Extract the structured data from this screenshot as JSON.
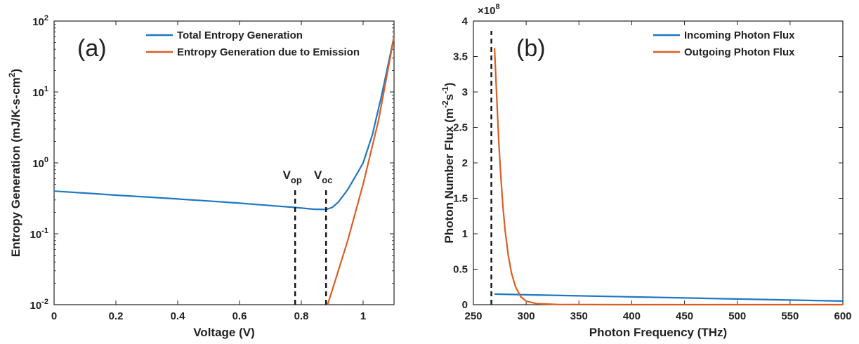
{
  "chart_data": [
    {
      "panel": "(a)",
      "type": "line",
      "xlabel": "Voltage (V)",
      "ylabel": "Entropy Generation (mJ/K-s-cm²)",
      "xlim": [
        0,
        1.1
      ],
      "ylim": [
        0.01,
        100
      ],
      "yscale": "log",
      "xticks": [
        "0",
        "0.2",
        "0.4",
        "0.6",
        "0.8",
        "1"
      ],
      "xtick_values": [
        0,
        0.2,
        0.4,
        0.6,
        0.8,
        1.0
      ],
      "yticks": [
        "10-2",
        "10-1",
        "100",
        "101",
        "102"
      ],
      "ytick_values": [
        0.01,
        0.1,
        1,
        10,
        100
      ],
      "grid": false,
      "legend": "top-right",
      "series": [
        {
          "name": "Total Entropy Generation",
          "color": "#1f77c4",
          "x": [
            0.0,
            0.1,
            0.2,
            0.3,
            0.4,
            0.5,
            0.6,
            0.7,
            0.78,
            0.84,
            0.88,
            0.9,
            0.92,
            0.95,
            0.98,
            1.0,
            1.03,
            1.06,
            1.1
          ],
          "y": [
            0.4,
            0.375,
            0.35,
            0.33,
            0.31,
            0.29,
            0.27,
            0.25,
            0.235,
            0.222,
            0.22,
            0.235,
            0.28,
            0.42,
            0.7,
            1.0,
            2.5,
            9.0,
            60
          ]
        },
        {
          "name": "Entropy Generation due to Emission",
          "color": "#d95f24",
          "x": [
            0.885,
            0.9,
            0.95,
            1.0,
            1.05,
            1.1
          ],
          "y": [
            0.01,
            0.016,
            0.08,
            0.5,
            4.0,
            60
          ]
        }
      ],
      "annotations": [
        {
          "base": "V",
          "sub": "op",
          "x": 0.78
        },
        {
          "base": "V",
          "sub": "oc",
          "x": 0.88
        }
      ]
    },
    {
      "panel": "(b)",
      "type": "line",
      "xlabel": "Photon Frequency (THz)",
      "ylabel": "Photon Number Flux (m-2s-1)",
      "ylabel_parts": {
        "main": "Photon Number Flux (m",
        "sup1": "-2",
        "mid": "s",
        "sup2": "-1",
        "end": ")"
      },
      "multiplier": "×10",
      "multiplier_exp": "8",
      "xlim": [
        250,
        600
      ],
      "ylim": [
        0,
        4
      ],
      "xticks": [
        "250",
        "300",
        "350",
        "400",
        "450",
        "500",
        "550",
        "600"
      ],
      "xtick_values": [
        250,
        300,
        350,
        400,
        450,
        500,
        550,
        600
      ],
      "yticks": [
        "0",
        "0.5",
        "1",
        "1.5",
        "2",
        "2.5",
        "3",
        "3.5",
        "4"
      ],
      "ytick_values": [
        0,
        0.5,
        1,
        1.5,
        2,
        2.5,
        3,
        3.5,
        4
      ],
      "grid": false,
      "legend": "top-right",
      "cutoff_x": 267,
      "series": [
        {
          "name": "Incoming Photon Flux",
          "color": "#1f77c4",
          "x": [
            270,
            300,
            350,
            400,
            450,
            500,
            550,
            600
          ],
          "y": [
            0.15,
            0.14,
            0.125,
            0.11,
            0.095,
            0.08,
            0.065,
            0.05
          ]
        },
        {
          "name": "Outgoing Photon Flux",
          "color": "#d95f24",
          "x": [
            270,
            272,
            274,
            276,
            278,
            280,
            283,
            286,
            290,
            295,
            300,
            310,
            330,
            400,
            500,
            600
          ],
          "y": [
            3.62,
            2.95,
            2.3,
            1.8,
            1.38,
            1.05,
            0.7,
            0.45,
            0.25,
            0.11,
            0.05,
            0.015,
            0.003,
            0.0,
            0.0,
            0.0
          ]
        }
      ]
    }
  ]
}
